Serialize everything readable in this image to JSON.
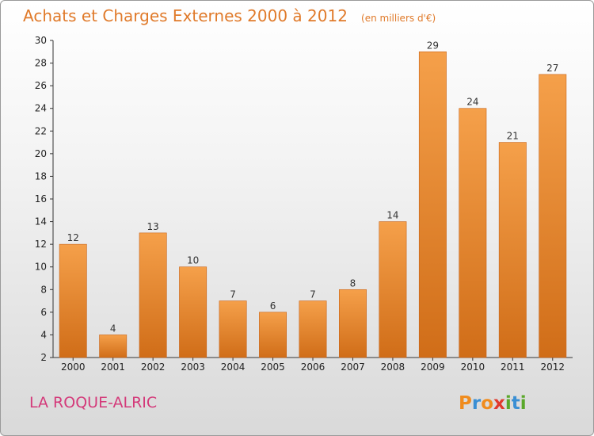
{
  "chart_data": {
    "type": "bar",
    "title": "Achats et Charges Externes 2000 à 2012",
    "unit": "(en milliers d'€)",
    "categories": [
      "2000",
      "2001",
      "2002",
      "2003",
      "2004",
      "2005",
      "2006",
      "2007",
      "2008",
      "2009",
      "2010",
      "2011",
      "2012"
    ],
    "values": [
      12,
      4,
      13,
      10,
      7,
      6,
      7,
      8,
      14,
      29,
      24,
      21,
      27
    ],
    "ylim": [
      2,
      30
    ],
    "yticks": [
      2,
      4,
      6,
      8,
      10,
      12,
      14,
      16,
      18,
      20,
      22,
      24,
      26,
      28,
      30
    ],
    "grid": false,
    "bar_color": "#f5a04a",
    "bar_color_dark": "#d06d18"
  },
  "place": "LA ROQUE-ALRIC",
  "logo": {
    "letters": [
      "P",
      "r",
      "o",
      "x",
      "i",
      "t",
      "i"
    ],
    "colors": [
      "#f08c1e",
      "#3a8fd4",
      "#f08c1e",
      "#e03a2e",
      "#5aa82a",
      "#3a8fd4",
      "#5aa82a"
    ]
  }
}
